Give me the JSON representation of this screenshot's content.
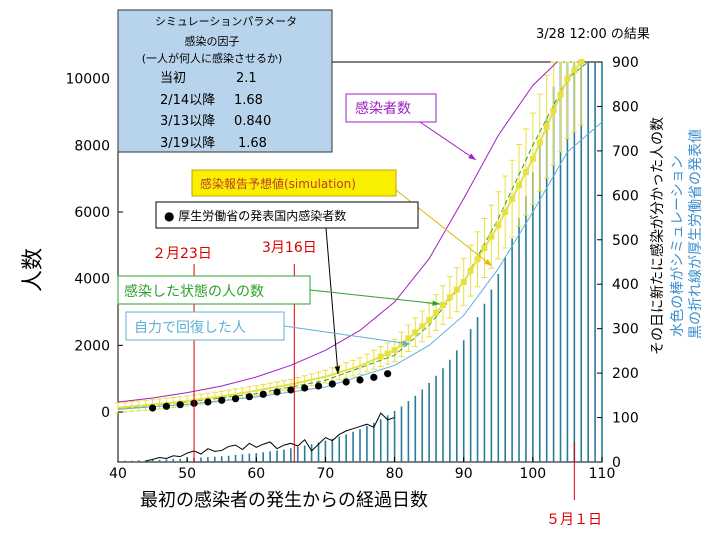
{
  "chart_data": {
    "type": "line",
    "title": "3/28 12:00 の結果",
    "xlabel": "最初の感染者の発生からの経過日数",
    "ylabel_left": "人数",
    "ylabel_right_1": "その日に新たに感染が分かった人の数",
    "ylabel_right_2": "水色の棒がシミュレーション",
    "ylabel_right_3": "黒の折れ線が厚生労働省の発表値",
    "x_range": [
      40,
      110
    ],
    "x_ticks": [
      "40",
      "50",
      "60",
      "70",
      "80",
      "90",
      "100",
      "110"
    ],
    "y_left_range": [
      -1500,
      10500
    ],
    "y_left_ticks": [
      "0",
      "2000",
      "4000",
      "6000",
      "8000",
      "10000"
    ],
    "y_right_range": [
      0,
      900
    ],
    "y_right_ticks": [
      "0",
      "100",
      "200",
      "300",
      "400",
      "500",
      "600",
      "700",
      "800",
      "900"
    ],
    "params": {
      "title": "シミュレーションパラメータ",
      "subtitle1": "感染の因子",
      "subtitle2": "(一人が何人に感染させるか)",
      "rows": [
        {
          "label": "当初",
          "value": "2.1"
        },
        {
          "label": "2/14以降",
          "value": "1.68"
        },
        {
          "label": "3/13以降",
          "value": "0.840"
        },
        {
          "label": "3/19以降",
          "value": "1.68"
        }
      ]
    },
    "annotations": {
      "infected": "感染者数",
      "forecast": "感染報告予想値(simulation)",
      "mhlw": "● 厚生労働省の発表国内感染者数",
      "state": "感染した状態の人の数",
      "recovered": "自力で回復した人",
      "date1": "２月23日",
      "date2": "3月16日",
      "date3": "５月１日"
    },
    "vlines": [
      51,
      65.5,
      106
    ],
    "series": [
      {
        "name": "感染者数",
        "color": "#a020c0",
        "x": [
          40,
          45,
          50,
          55,
          60,
          65,
          70,
          75,
          80,
          85,
          90,
          95,
          100,
          103.5
        ],
        "y": [
          300,
          420,
          580,
          780,
          1050,
          1400,
          1850,
          2450,
          3300,
          4600,
          6400,
          8300,
          9800,
          10500
        ]
      },
      {
        "name": "感染した状態の人の数",
        "color": "#2ca02c",
        "x": [
          40,
          50,
          60,
          70,
          80,
          85,
          90,
          95,
          100,
          105,
          108
        ],
        "y": [
          100,
          300,
          550,
          950,
          1700,
          2600,
          3900,
          5800,
          8000,
          10000,
          10500
        ]
      },
      {
        "name": "自力で回復した人",
        "color": "#5fb0d8",
        "x": [
          40,
          50,
          60,
          70,
          80,
          85,
          90,
          95,
          100,
          105,
          110
        ],
        "y": [
          80,
          230,
          450,
          750,
          1400,
          2000,
          2900,
          4300,
          6000,
          7800,
          8700
        ]
      },
      {
        "name": "感染報告予想値(simulation)",
        "color": "#e8e040",
        "x": [
          40,
          45,
          50,
          55,
          60,
          65,
          70,
          75,
          80,
          85,
          90,
          95,
          100,
          105,
          107
        ],
        "y": [
          130,
          220,
          330,
          470,
          640,
          830,
          1060,
          1380,
          1850,
          2750,
          3900,
          5600,
          7600,
          10000,
          10500
        ]
      },
      {
        "name": "厚生労働省の発表国内感染者数",
        "color": "#000000",
        "x": [
          45,
          47,
          49,
          51,
          53,
          55,
          57,
          59,
          61,
          63,
          65,
          67,
          69,
          71,
          73,
          75,
          77,
          79
        ],
        "y": [
          120,
          170,
          220,
          260,
          300,
          350,
          400,
          460,
          530,
          600,
          660,
          720,
          780,
          840,
          900,
          960,
          1040,
          1150
        ]
      }
    ],
    "bars_sim": {
      "name": "水色の棒がシミュレーション",
      "color": "#2a7a9a",
      "x_start": 40,
      "x_end": 110,
      "values": [
        2,
        3,
        3,
        4,
        4,
        5,
        5,
        6,
        7,
        7,
        8,
        9,
        10,
        11,
        12,
        13,
        14,
        16,
        17,
        19,
        20,
        22,
        24,
        26,
        28,
        31,
        34,
        37,
        40,
        44,
        48,
        52,
        57,
        62,
        68,
        74,
        81,
        88,
        96,
        105,
        115,
        125,
        137,
        149,
        163,
        178,
        194,
        211,
        230,
        251,
        274,
        299,
        326,
        356,
        388,
        423,
        461,
        503,
        549,
        598,
        652,
        711,
        775,
        845,
        921,
        960,
        960,
        960,
        960,
        960,
        960
      ]
    },
    "line_mhlw_daily": {
      "name": "黒の折れ線が厚生労働省の発表値",
      "color": "#000000",
      "x": [
        44,
        45,
        46,
        47,
        48,
        49,
        50,
        51,
        52,
        53,
        54,
        55,
        56,
        57,
        58,
        59,
        60,
        61,
        62,
        63,
        64,
        65,
        66,
        67,
        68,
        69,
        70,
        71,
        72,
        73,
        74,
        75,
        76,
        77,
        78,
        79,
        80
      ],
      "values": [
        2,
        6,
        10,
        8,
        14,
        12,
        20,
        25,
        18,
        30,
        24,
        26,
        35,
        38,
        28,
        42,
        33,
        40,
        45,
        30,
        38,
        42,
        36,
        50,
        25,
        40,
        55,
        48,
        62,
        70,
        75,
        80,
        85,
        78,
        110,
        95,
        100
      ]
    }
  }
}
